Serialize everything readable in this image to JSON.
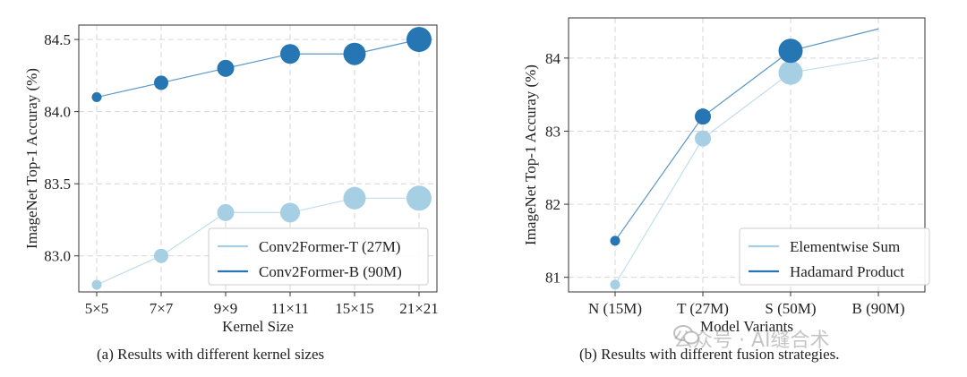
{
  "chart_data": [
    {
      "type": "scatter",
      "xlabel": "Kernel Size",
      "ylabel": "ImageNet Top-1 Accuray (%)",
      "categories": [
        "5×5",
        "7×7",
        "9×9",
        "11×11",
        "15×15",
        "21×21"
      ],
      "yticks": [
        "83.0",
        "83.5",
        "84.0",
        "84.5"
      ],
      "ytick_values": [
        83.0,
        83.5,
        84.0,
        84.5
      ],
      "ylim": [
        82.75,
        84.6
      ],
      "grid": true,
      "legend_position": "lower-right",
      "series": [
        {
          "name": "Conv2Former-T (27M)",
          "color": "#a6cfe4",
          "values": [
            82.8,
            83.0,
            83.3,
            83.3,
            83.4,
            83.4
          ],
          "sizes": [
            1,
            2,
            3,
            4,
            5,
            6
          ]
        },
        {
          "name": "Conv2Former-B (90M)",
          "color": "#2676b3",
          "values": [
            84.1,
            84.2,
            84.3,
            84.4,
            84.4,
            84.5
          ],
          "sizes": [
            1,
            2,
            3,
            4,
            5,
            6
          ]
        }
      ],
      "caption": "(a) Results with different kernel sizes"
    },
    {
      "type": "scatter",
      "xlabel": "Model Variants",
      "ylabel": "ImageNet Top-1 Accuray (%)",
      "categories": [
        "N (15M)",
        "T (27M)",
        "S (50M)",
        "B (90M)"
      ],
      "yticks": [
        "81",
        "82",
        "83",
        "84"
      ],
      "ytick_values": [
        81,
        82,
        83,
        84
      ],
      "ylim": [
        80.8,
        84.55
      ],
      "grid": true,
      "legend_position": "lower-right",
      "series": [
        {
          "name": "Elementwise Sum",
          "color": "#a6cfe4",
          "values": [
            80.9,
            82.9,
            83.8,
            84.0
          ],
          "sizes": [
            1,
            2,
            4,
            6
          ]
        },
        {
          "name": "Hadamard Product",
          "color": "#2676b3",
          "values": [
            81.5,
            83.2,
            84.1,
            84.4
          ],
          "sizes": [
            1,
            2,
            4,
            6
          ]
        }
      ],
      "caption": "(b) Results with different fusion strategies."
    }
  ],
  "watermark": "公众号 · AI缝合术"
}
